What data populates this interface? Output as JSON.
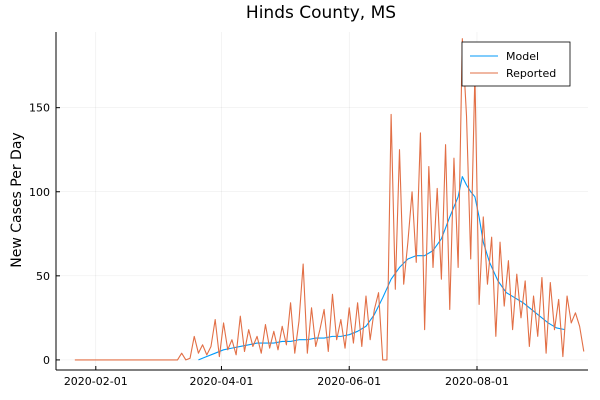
{
  "chart_data": {
    "type": "line",
    "title": "Hinds County, MS",
    "xlabel": "",
    "ylabel": "New Cases Per Day",
    "x_axis": {
      "type": "date",
      "range": [
        "2020-01-13",
        "2020-09-23"
      ],
      "ticks": [
        "2020-02-01",
        "2020-04-01",
        "2020-06-01",
        "2020-08-01"
      ]
    },
    "y_axis": {
      "range": [
        -6,
        195
      ],
      "ticks": [
        0,
        50,
        100,
        150
      ]
    },
    "grid": true,
    "legend": {
      "placement": "top-right"
    },
    "series": [
      {
        "name": "Model",
        "color": "#009AFA",
        "points": [
          [
            "2020-03-21",
            0
          ],
          [
            "2020-03-25",
            2
          ],
          [
            "2020-03-29",
            4
          ],
          [
            "2020-04-02",
            6
          ],
          [
            "2020-04-06",
            7
          ],
          [
            "2020-04-10",
            8
          ],
          [
            "2020-04-14",
            9
          ],
          [
            "2020-04-18",
            10
          ],
          [
            "2020-04-22",
            10
          ],
          [
            "2020-04-26",
            10
          ],
          [
            "2020-04-30",
            11
          ],
          [
            "2020-05-04",
            11
          ],
          [
            "2020-05-08",
            12
          ],
          [
            "2020-05-12",
            12
          ],
          [
            "2020-05-16",
            13
          ],
          [
            "2020-05-20",
            13
          ],
          [
            "2020-05-24",
            14
          ],
          [
            "2020-05-28",
            14
          ],
          [
            "2020-06-01",
            15
          ],
          [
            "2020-06-05",
            17
          ],
          [
            "2020-06-09",
            20
          ],
          [
            "2020-06-13",
            27
          ],
          [
            "2020-06-17",
            37
          ],
          [
            "2020-06-21",
            48
          ],
          [
            "2020-06-25",
            55
          ],
          [
            "2020-06-29",
            60
          ],
          [
            "2020-07-03",
            62
          ],
          [
            "2020-07-07",
            62
          ],
          [
            "2020-07-11",
            65
          ],
          [
            "2020-07-15",
            72
          ],
          [
            "2020-07-19",
            85
          ],
          [
            "2020-07-23",
            97
          ],
          [
            "2020-07-25",
            109
          ],
          [
            "2020-07-27",
            104
          ],
          [
            "2020-07-29",
            100
          ],
          [
            "2020-07-31",
            97
          ],
          [
            "2020-08-02",
            85
          ],
          [
            "2020-08-04",
            70
          ],
          [
            "2020-08-07",
            58
          ],
          [
            "2020-08-11",
            47
          ],
          [
            "2020-08-15",
            40
          ],
          [
            "2020-08-19",
            37
          ],
          [
            "2020-08-23",
            34
          ],
          [
            "2020-08-27",
            30
          ],
          [
            "2020-08-31",
            26
          ],
          [
            "2020-09-04",
            22
          ],
          [
            "2020-09-08",
            19
          ],
          [
            "2020-09-12",
            18
          ]
        ]
      },
      {
        "name": "Reported",
        "color": "#E26F46",
        "points": [
          [
            "2020-01-22",
            0
          ],
          [
            "2020-03-11",
            0
          ],
          [
            "2020-03-13",
            4
          ],
          [
            "2020-03-15",
            0
          ],
          [
            "2020-03-17",
            1
          ],
          [
            "2020-03-19",
            14
          ],
          [
            "2020-03-21",
            4
          ],
          [
            "2020-03-23",
            9
          ],
          [
            "2020-03-25",
            3
          ],
          [
            "2020-03-27",
            8
          ],
          [
            "2020-03-29",
            24
          ],
          [
            "2020-03-31",
            2
          ],
          [
            "2020-04-02",
            22
          ],
          [
            "2020-04-04",
            6
          ],
          [
            "2020-04-06",
            12
          ],
          [
            "2020-04-08",
            3
          ],
          [
            "2020-04-10",
            26
          ],
          [
            "2020-04-12",
            5
          ],
          [
            "2020-04-14",
            18
          ],
          [
            "2020-04-16",
            8
          ],
          [
            "2020-04-18",
            14
          ],
          [
            "2020-04-20",
            4
          ],
          [
            "2020-04-22",
            21
          ],
          [
            "2020-04-24",
            7
          ],
          [
            "2020-04-26",
            17
          ],
          [
            "2020-04-28",
            6
          ],
          [
            "2020-04-30",
            20
          ],
          [
            "2020-05-02",
            9
          ],
          [
            "2020-05-04",
            34
          ],
          [
            "2020-05-06",
            4
          ],
          [
            "2020-05-08",
            23
          ],
          [
            "2020-05-10",
            57
          ],
          [
            "2020-05-12",
            4
          ],
          [
            "2020-05-14",
            31
          ],
          [
            "2020-05-16",
            8
          ],
          [
            "2020-05-18",
            18
          ],
          [
            "2020-05-20",
            30
          ],
          [
            "2020-05-22",
            5
          ],
          [
            "2020-05-24",
            39
          ],
          [
            "2020-05-26",
            12
          ],
          [
            "2020-05-28",
            24
          ],
          [
            "2020-05-30",
            7
          ],
          [
            "2020-06-01",
            31
          ],
          [
            "2020-06-03",
            10
          ],
          [
            "2020-06-05",
            34
          ],
          [
            "2020-06-07",
            8
          ],
          [
            "2020-06-09",
            38
          ],
          [
            "2020-06-11",
            12
          ],
          [
            "2020-06-13",
            30
          ],
          [
            "2020-06-15",
            40
          ],
          [
            "2020-06-17",
            0
          ],
          [
            "2020-06-19",
            0
          ],
          [
            "2020-06-21",
            146
          ],
          [
            "2020-06-23",
            42
          ],
          [
            "2020-06-25",
            125
          ],
          [
            "2020-06-27",
            45
          ],
          [
            "2020-06-29",
            70
          ],
          [
            "2020-07-01",
            100
          ],
          [
            "2020-07-03",
            58
          ],
          [
            "2020-07-05",
            135
          ],
          [
            "2020-07-07",
            18
          ],
          [
            "2020-07-09",
            115
          ],
          [
            "2020-07-11",
            55
          ],
          [
            "2020-07-13",
            102
          ],
          [
            "2020-07-15",
            48
          ],
          [
            "2020-07-17",
            128
          ],
          [
            "2020-07-19",
            30
          ],
          [
            "2020-07-21",
            120
          ],
          [
            "2020-07-23",
            55
          ],
          [
            "2020-07-25",
            191
          ],
          [
            "2020-07-27",
            145
          ],
          [
            "2020-07-29",
            60
          ],
          [
            "2020-07-31",
            170
          ],
          [
            "2020-08-02",
            33
          ],
          [
            "2020-08-04",
            85
          ],
          [
            "2020-08-06",
            45
          ],
          [
            "2020-08-08",
            73
          ],
          [
            "2020-08-10",
            14
          ],
          [
            "2020-08-12",
            70
          ],
          [
            "2020-08-14",
            32
          ],
          [
            "2020-08-16",
            59
          ],
          [
            "2020-08-18",
            18
          ],
          [
            "2020-08-20",
            51
          ],
          [
            "2020-08-22",
            25
          ],
          [
            "2020-08-24",
            47
          ],
          [
            "2020-08-26",
            8
          ],
          [
            "2020-08-28",
            38
          ],
          [
            "2020-08-30",
            14
          ],
          [
            "2020-09-01",
            49
          ],
          [
            "2020-09-03",
            4
          ],
          [
            "2020-09-05",
            46
          ],
          [
            "2020-09-07",
            18
          ],
          [
            "2020-09-09",
            36
          ],
          [
            "2020-09-11",
            2
          ],
          [
            "2020-09-13",
            38
          ],
          [
            "2020-09-15",
            22
          ],
          [
            "2020-09-17",
            28
          ],
          [
            "2020-09-19",
            20
          ],
          [
            "2020-09-21",
            5
          ]
        ]
      }
    ]
  }
}
